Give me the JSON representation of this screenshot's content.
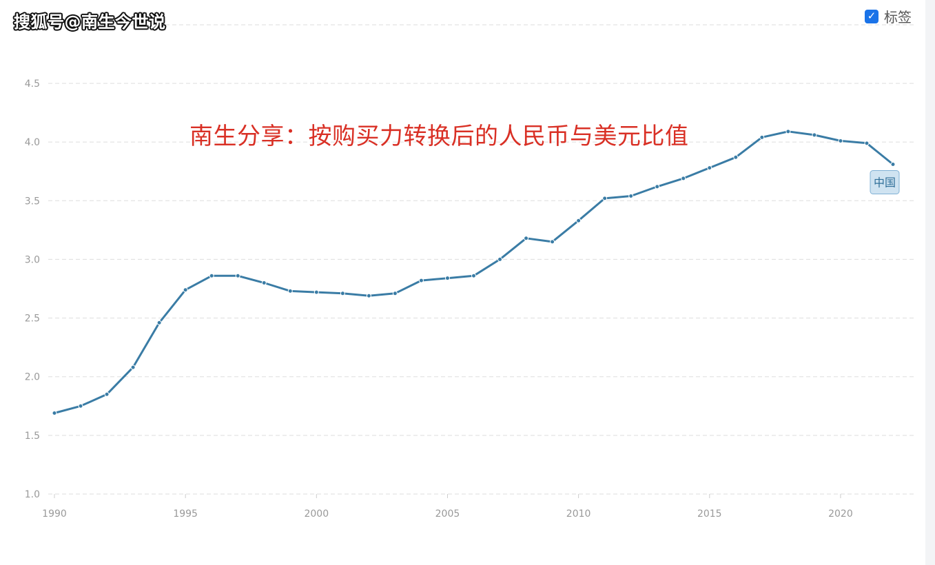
{
  "watermark": "搜狐号@南生今世说",
  "toggle": {
    "label": "标签",
    "checked": true,
    "icon": "checkmark-icon"
  },
  "overlay_title": "南生分享：按购买力转换后的人民币与美元比值",
  "colors": {
    "line": "#3a7ca5",
    "title": "#d93025",
    "grid": "#dddddd",
    "tick_text": "#999999",
    "checkbox": "#1a73e8",
    "series_label_bg": "#cfe3f1",
    "series_label_border": "#7fb0d4"
  },
  "chart_data": {
    "type": "line",
    "title": "",
    "xlabel": "",
    "ylabel": "",
    "xlim": [
      1990,
      2022
    ],
    "ylim": [
      1.0,
      4.5
    ],
    "grid": true,
    "xticks": [
      1990,
      1995,
      2000,
      2005,
      2010,
      2015,
      2020
    ],
    "yticks": [
      "1.0",
      "1.5",
      "2.0",
      "2.5",
      "3.0",
      "3.5",
      "4.0",
      "4.5"
    ],
    "series": [
      {
        "name": "中国",
        "x": [
          1990,
          1991,
          1992,
          1993,
          1994,
          1995,
          1996,
          1997,
          1998,
          1999,
          2000,
          2001,
          2002,
          2003,
          2004,
          2005,
          2006,
          2007,
          2008,
          2009,
          2010,
          2011,
          2012,
          2013,
          2014,
          2015,
          2016,
          2017,
          2018,
          2019,
          2020,
          2021,
          2022
        ],
        "values": [
          1.69,
          1.75,
          1.85,
          2.08,
          2.46,
          2.74,
          2.86,
          2.86,
          2.8,
          2.73,
          2.72,
          2.71,
          2.69,
          2.71,
          2.82,
          2.84,
          2.86,
          3.0,
          3.18,
          3.15,
          3.33,
          3.52,
          3.54,
          3.62,
          3.69,
          3.78,
          3.87,
          4.04,
          4.09,
          4.06,
          4.01,
          3.99,
          3.81
        ]
      }
    ]
  }
}
